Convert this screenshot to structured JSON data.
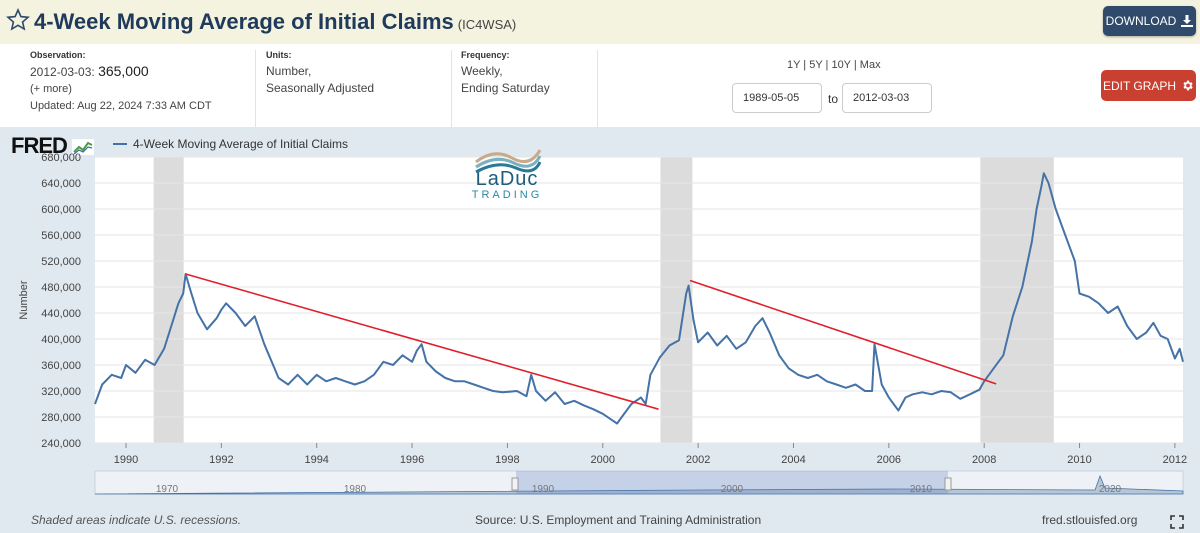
{
  "header": {
    "title": "4-Week Moving Average of Initial Claims",
    "code": "(IC4WSA)",
    "download_label": "DOWNLOAD"
  },
  "meta": {
    "observation_label": "Observation:",
    "observation_date": "2012-03-03:",
    "observation_value": "365,000",
    "more": "(+ more)",
    "updated": "Updated: Aug 22, 2024 7:33 AM CDT",
    "units_label": "Units:",
    "units_line1": "Number,",
    "units_line2": "Seasonally Adjusted",
    "frequency_label": "Frequency:",
    "frequency_line1": "Weekly,",
    "frequency_line2": "Ending Saturday"
  },
  "range": {
    "links": "1Y | 5Y | 10Y | Max",
    "start": "1989-05-05",
    "to": "to",
    "end": "2012-03-03"
  },
  "edit_label": "EDIT GRAPH",
  "logo": {
    "fred": "FRED",
    "watermark_line1": "LaDuc",
    "watermark_line2": "TRADING"
  },
  "footer": {
    "recessions": "Shaded areas indicate U.S. recessions.",
    "source": "Source: U.S. Employment and Training Administration",
    "site": "fred.stlouisfed.org"
  },
  "colors": {
    "series": "#4572a7",
    "trendline": "#e0202a",
    "recession": "#dcdcdc",
    "plot_bg": "#ffffff",
    "panel_bg": "#e1e9f0"
  },
  "chart_data": {
    "type": "line",
    "ylabel": "Number",
    "ylim": [
      240000,
      680000
    ],
    "xlim": [
      1989.35,
      2012.17
    ],
    "yticks": [
      240000,
      280000,
      320000,
      360000,
      400000,
      440000,
      480000,
      520000,
      560000,
      600000,
      640000,
      680000
    ],
    "ytick_labels": [
      "240,000",
      "280,000",
      "320,000",
      "360,000",
      "400,000",
      "440,000",
      "480,000",
      "520,000",
      "560,000",
      "600,000",
      "640,000",
      "680,000"
    ],
    "xticks": [
      1990,
      1992,
      1994,
      1996,
      1998,
      2000,
      2002,
      2004,
      2006,
      2008,
      2010,
      2012
    ],
    "xtick_labels": [
      "1990",
      "1992",
      "1994",
      "1996",
      "1998",
      "2000",
      "2002",
      "2004",
      "2006",
      "2008",
      "2010",
      "2012"
    ],
    "series": [
      {
        "name": "4-Week Moving Average of Initial Claims",
        "points": [
          [
            1989.35,
            300000
          ],
          [
            1989.5,
            330000
          ],
          [
            1989.7,
            345000
          ],
          [
            1989.9,
            340000
          ],
          [
            1990.0,
            360000
          ],
          [
            1990.2,
            348000
          ],
          [
            1990.4,
            368000
          ],
          [
            1990.6,
            360000
          ],
          [
            1990.8,
            385000
          ],
          [
            1990.95,
            420000
          ],
          [
            1991.1,
            455000
          ],
          [
            1991.2,
            470000
          ],
          [
            1991.25,
            500000
          ],
          [
            1991.35,
            475000
          ],
          [
            1991.5,
            440000
          ],
          [
            1991.7,
            415000
          ],
          [
            1991.9,
            432000
          ],
          [
            1992.0,
            445000
          ],
          [
            1992.1,
            455000
          ],
          [
            1992.3,
            440000
          ],
          [
            1992.5,
            420000
          ],
          [
            1992.7,
            435000
          ],
          [
            1992.9,
            392000
          ],
          [
            1993.0,
            375000
          ],
          [
            1993.2,
            340000
          ],
          [
            1993.4,
            330000
          ],
          [
            1993.6,
            345000
          ],
          [
            1993.8,
            330000
          ],
          [
            1994.0,
            345000
          ],
          [
            1994.2,
            335000
          ],
          [
            1994.4,
            340000
          ],
          [
            1994.6,
            335000
          ],
          [
            1994.8,
            330000
          ],
          [
            1995.0,
            335000
          ],
          [
            1995.2,
            345000
          ],
          [
            1995.4,
            365000
          ],
          [
            1995.6,
            360000
          ],
          [
            1995.8,
            375000
          ],
          [
            1996.0,
            365000
          ],
          [
            1996.1,
            382000
          ],
          [
            1996.2,
            392000
          ],
          [
            1996.3,
            365000
          ],
          [
            1996.5,
            350000
          ],
          [
            1996.7,
            340000
          ],
          [
            1996.9,
            335000
          ],
          [
            1997.1,
            335000
          ],
          [
            1997.3,
            330000
          ],
          [
            1997.5,
            325000
          ],
          [
            1997.7,
            320000
          ],
          [
            1997.9,
            318000
          ],
          [
            1998.2,
            320000
          ],
          [
            1998.4,
            312000
          ],
          [
            1998.5,
            345000
          ],
          [
            1998.6,
            320000
          ],
          [
            1998.8,
            305000
          ],
          [
            1999.0,
            318000
          ],
          [
            1999.2,
            300000
          ],
          [
            1999.4,
            305000
          ],
          [
            1999.6,
            298000
          ],
          [
            1999.8,
            292000
          ],
          [
            2000.0,
            285000
          ],
          [
            2000.2,
            275000
          ],
          [
            2000.3,
            270000
          ],
          [
            2000.4,
            280000
          ],
          [
            2000.6,
            300000
          ],
          [
            2000.8,
            310000
          ],
          [
            2000.9,
            300000
          ],
          [
            2001.0,
            345000
          ],
          [
            2001.2,
            372000
          ],
          [
            2001.4,
            390000
          ],
          [
            2001.6,
            398000
          ],
          [
            2001.75,
            470000
          ],
          [
            2001.8,
            482000
          ],
          [
            2001.9,
            430000
          ],
          [
            2002.0,
            395000
          ],
          [
            2002.2,
            410000
          ],
          [
            2002.4,
            390000
          ],
          [
            2002.6,
            405000
          ],
          [
            2002.8,
            385000
          ],
          [
            2003.0,
            395000
          ],
          [
            2003.2,
            420000
          ],
          [
            2003.35,
            432000
          ],
          [
            2003.5,
            410000
          ],
          [
            2003.7,
            375000
          ],
          [
            2003.9,
            355000
          ],
          [
            2004.1,
            345000
          ],
          [
            2004.3,
            340000
          ],
          [
            2004.5,
            345000
          ],
          [
            2004.7,
            335000
          ],
          [
            2004.9,
            330000
          ],
          [
            2005.1,
            325000
          ],
          [
            2005.3,
            330000
          ],
          [
            2005.5,
            320000
          ],
          [
            2005.65,
            320000
          ],
          [
            2005.7,
            392000
          ],
          [
            2005.85,
            330000
          ],
          [
            2006.0,
            310000
          ],
          [
            2006.1,
            300000
          ],
          [
            2006.2,
            290000
          ],
          [
            2006.35,
            310000
          ],
          [
            2006.5,
            315000
          ],
          [
            2006.7,
            318000
          ],
          [
            2006.9,
            315000
          ],
          [
            2007.1,
            320000
          ],
          [
            2007.3,
            318000
          ],
          [
            2007.5,
            308000
          ],
          [
            2007.7,
            315000
          ],
          [
            2007.9,
            322000
          ],
          [
            2008.0,
            335000
          ],
          [
            2008.2,
            355000
          ],
          [
            2008.4,
            375000
          ],
          [
            2008.6,
            435000
          ],
          [
            2008.8,
            480000
          ],
          [
            2009.0,
            550000
          ],
          [
            2009.1,
            600000
          ],
          [
            2009.2,
            635000
          ],
          [
            2009.25,
            655000
          ],
          [
            2009.35,
            640000
          ],
          [
            2009.5,
            600000
          ],
          [
            2009.7,
            560000
          ],
          [
            2009.9,
            520000
          ],
          [
            2010.0,
            470000
          ],
          [
            2010.2,
            465000
          ],
          [
            2010.4,
            455000
          ],
          [
            2010.6,
            440000
          ],
          [
            2010.8,
            450000
          ],
          [
            2011.0,
            420000
          ],
          [
            2011.2,
            400000
          ],
          [
            2011.4,
            410000
          ],
          [
            2011.55,
            425000
          ],
          [
            2011.7,
            405000
          ],
          [
            2011.85,
            400000
          ],
          [
            2012.0,
            370000
          ],
          [
            2012.1,
            385000
          ],
          [
            2012.17,
            365000
          ]
        ]
      }
    ],
    "recessions": [
      [
        1990.58,
        1991.21
      ],
      [
        2001.21,
        2001.88
      ],
      [
        2007.92,
        2009.46
      ]
    ],
    "trendlines": [
      {
        "from": [
          1991.25,
          500000
        ],
        "to": [
          2001.17,
          292000
        ]
      },
      {
        "from": [
          2001.83,
          490000
        ],
        "to": [
          2008.25,
          331000
        ]
      }
    ],
    "navigator_labels": [
      "1970",
      "1980",
      "1990",
      "2000",
      "2010",
      "2020"
    ]
  }
}
